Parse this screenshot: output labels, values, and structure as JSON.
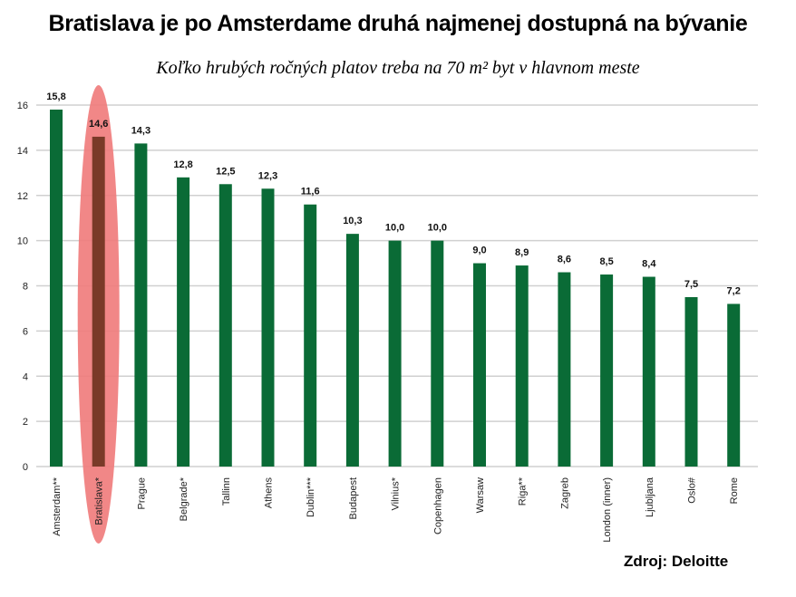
{
  "chart_data": {
    "type": "bar",
    "title": "Bratislava je po Amsterdame druhá najmenej dostupná na bývanie",
    "subtitle": "Koľko hrubých ročných platov treba na 70 m² byt v hlavnom meste",
    "source": "Zdroj: Deloitte",
    "categories": [
      "Amsterdam**",
      "Bratislava*",
      "Prague",
      "Belgrade*",
      "Tallinn",
      "Athens",
      "Dublin***",
      "Budapest",
      "Vilnius*",
      "Copenhagen",
      "Warsaw",
      "Riga**",
      "Zagreb",
      "London (inner)",
      "Ljubljana",
      "Oslo#",
      "Rome"
    ],
    "values": [
      15.8,
      14.6,
      14.3,
      12.8,
      12.5,
      12.3,
      11.6,
      10.3,
      10.0,
      10.0,
      9.0,
      8.9,
      8.6,
      8.5,
      8.4,
      7.5,
      7.2
    ],
    "value_labels": [
      "15,8",
      "14,6",
      "14,3",
      "12,8",
      "12,5",
      "12,3",
      "11,6",
      "10,3",
      "10,0",
      "10,0",
      "9,0",
      "8,9",
      "8,6",
      "8,5",
      "8,4",
      "7,5",
      "7,2"
    ],
    "yticks": [
      0,
      2,
      4,
      6,
      8,
      10,
      12,
      14,
      16
    ],
    "ylim": [
      0,
      16
    ],
    "grid": true,
    "highlight_index": 1,
    "colors": {
      "bar": "#0a6b36",
      "highlight_bar": "#7a3a28",
      "highlight_ellipse": "#f07a7a",
      "grid": "#d0d0d0"
    }
  }
}
